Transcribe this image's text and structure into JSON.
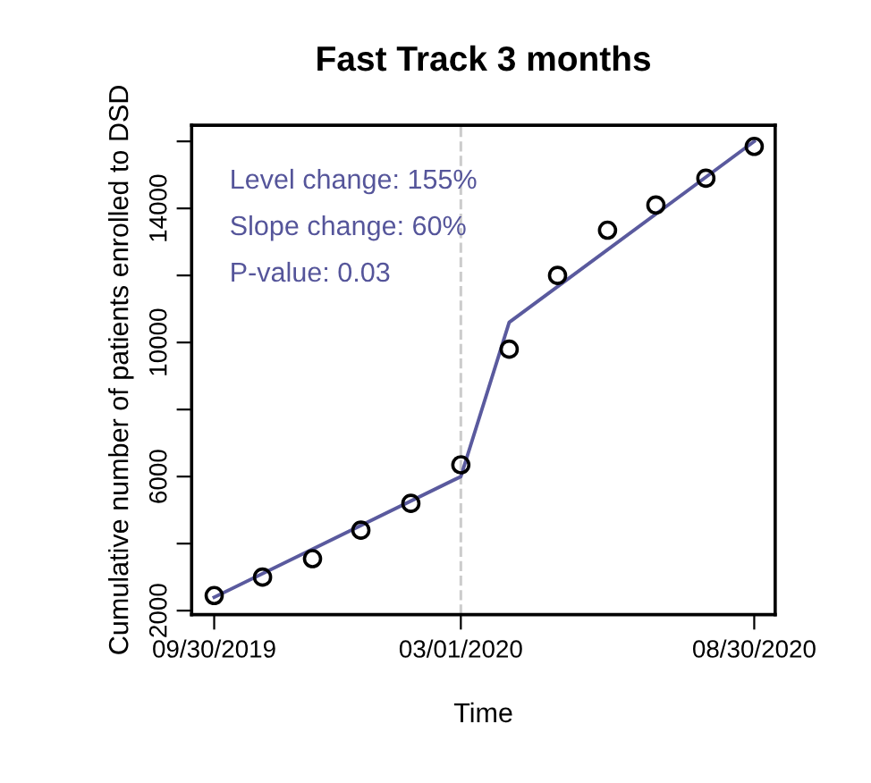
{
  "chart_data": {
    "type": "scatter",
    "title": "Fast Track 3 months",
    "xlabel": "Time",
    "ylabel": "Cumulative number of patients enrolled to DSD",
    "series": [
      {
        "color": "#000000",
        "marker": "circle",
        "x": [
          "2019-09-30",
          "2019-10-30",
          "2019-11-30",
          "2019-12-30",
          "2020-01-30",
          "2020-03-01",
          "2020-03-31",
          "2020-04-30",
          "2020-05-31",
          "2020-06-30",
          "2020-07-31",
          "2020-08-30"
        ],
        "values": [
          2450,
          3000,
          3550,
          4400,
          5200,
          6350,
          9800,
          12000,
          13350,
          14100,
          14900,
          15850
        ]
      },
      {
        "type": "line",
        "color": "#5a5a9e",
        "marker": "none",
        "line_style": "solid",
        "x": [
          "2019-09-30",
          "2020-03-01",
          "2020-03-31",
          "2020-08-30"
        ],
        "values": [
          2400,
          6000,
          10600,
          16000
        ]
      }
    ],
    "xlim": [
      "2019-09-16",
      "2020-09-12"
    ],
    "ylim": [
      1880,
      16480
    ],
    "xticks": [
      {
        "value": "2019-09-30",
        "label": "09/30/2019"
      },
      {
        "value": "2020-03-01",
        "label": "03/01/2020"
      },
      {
        "value": "2020-08-30",
        "label": "08/30/2020"
      }
    ],
    "yticks": [
      2000,
      {
        "value": 4000,
        "label": null
      },
      6000,
      {
        "value": 8000,
        "label": null
      },
      10000,
      {
        "value": 12000,
        "label": null
      },
      14000,
      {
        "value": 16000,
        "label": null
      }
    ],
    "ref_lines": [
      {
        "axis": "x",
        "value": "2020-03-01",
        "label": null,
        "color": "#cccccc",
        "line_style": "dashed"
      }
    ],
    "annotations": [
      "Level change: 155%",
      "Slope change: 60%",
      "P-value: 0.03"
    ]
  }
}
